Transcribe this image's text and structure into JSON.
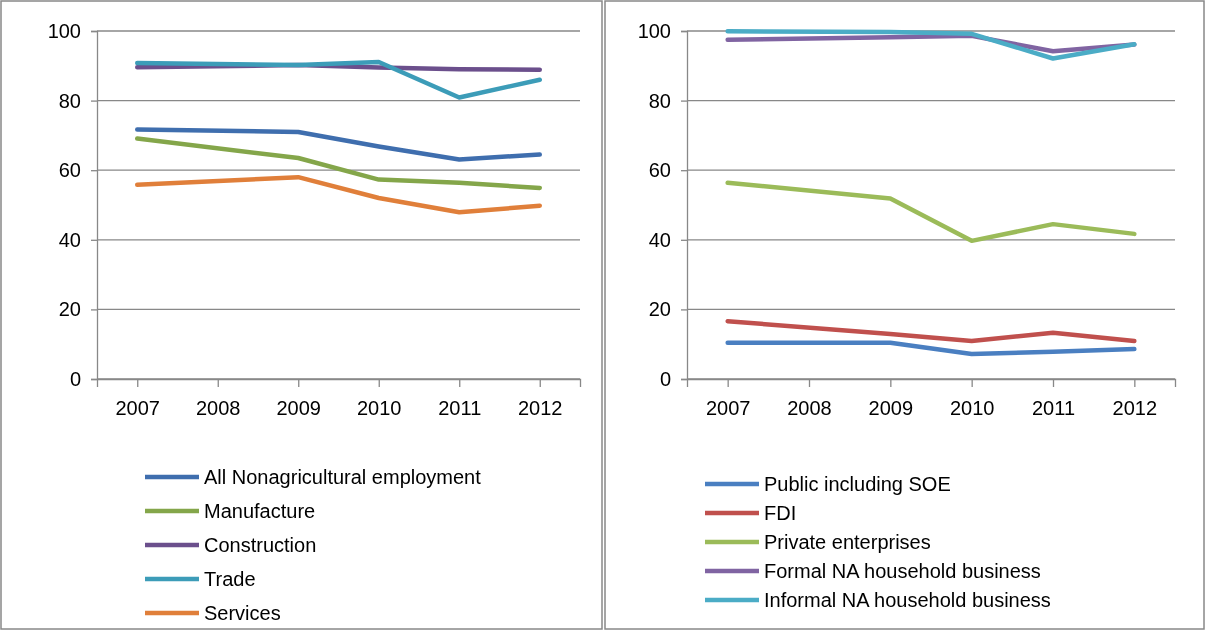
{
  "chart_data": [
    {
      "type": "line",
      "x": [
        2007,
        2009,
        2010,
        2011,
        2012
      ],
      "xlim": [
        2006.5,
        2012.5
      ],
      "xticks": [
        2007,
        2008,
        2009,
        2010,
        2011,
        2012
      ],
      "ylim": [
        0,
        100
      ],
      "yticks": [
        0,
        20,
        40,
        60,
        80,
        100
      ],
      "grid": "y",
      "legend": "bottom",
      "marker": "none",
      "line_style": "solid",
      "series": [
        {
          "name": "All Nonagricultural employment",
          "color": "#3f6eae",
          "values": [
            71.7,
            71,
            66.8,
            63.1,
            64.5
          ]
        },
        {
          "name": "Manufacture",
          "color": "#84a64a",
          "values": [
            69.1,
            63.5,
            57.3,
            56.4,
            54.9
          ]
        },
        {
          "name": "Construction",
          "color": "#6b4f8c",
          "values": [
            89.6,
            90.2,
            89.5,
            89,
            88.9
          ]
        },
        {
          "name": "Trade",
          "color": "#3c9cb8",
          "values": [
            90.8,
            90.2,
            91.1,
            80.9,
            86
          ]
        },
        {
          "name": "Services",
          "color": "#e07f3a",
          "values": [
            55.8,
            58,
            52,
            47.9,
            49.8
          ]
        }
      ]
    },
    {
      "type": "line",
      "x": [
        2007,
        2009,
        2010,
        2011,
        2012
      ],
      "xlim": [
        2006.5,
        2012.5
      ],
      "xticks": [
        2007,
        2008,
        2009,
        2010,
        2011,
        2012
      ],
      "ylim": [
        0,
        100
      ],
      "yticks": [
        0,
        20,
        40,
        60,
        80,
        100
      ],
      "grid": "y",
      "legend": "bottom",
      "marker": "none",
      "line_style": "solid",
      "series": [
        {
          "name": "Public including SOE",
          "color": "#4a7fc1",
          "values": [
            10.4,
            10.4,
            7.2,
            7.8,
            8.6
          ]
        },
        {
          "name": "FDI",
          "color": "#c0504d",
          "values": [
            16.6,
            12.9,
            10.9,
            13.3,
            10.9
          ]
        },
        {
          "name": "Private enterprises",
          "color": "#9bbb59",
          "values": [
            56.4,
            51.9,
            39.7,
            44.5,
            41.7
          ]
        },
        {
          "name": "Formal NA household business",
          "color": "#8064a2",
          "values": [
            97.5,
            98.2,
            98.6,
            94.2,
            96.1
          ]
        },
        {
          "name": "Informal NA household business",
          "color": "#4bacc6",
          "values": [
            99.9,
            99.7,
            99.2,
            92.1,
            96.2
          ]
        }
      ]
    }
  ]
}
